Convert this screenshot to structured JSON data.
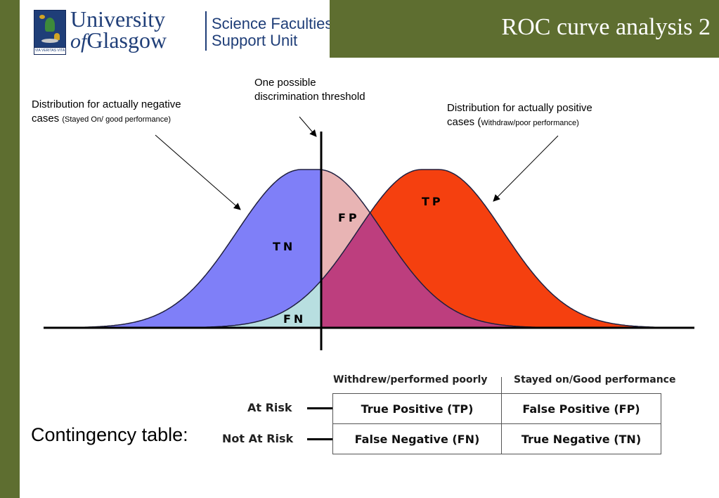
{
  "header": {
    "title": "ROC curve analysis 2",
    "logo": {
      "university_line1": "University",
      "university_of": "of",
      "university_line2": "Glasgow",
      "unit_line1": "Science Faculties",
      "unit_line2": "Support Unit",
      "motto": "VIA VERITAS VITA"
    }
  },
  "diagram": {
    "threshold_label_line1": "One possible",
    "threshold_label_line2": "discrimination threshold",
    "negative_label_line1": "Distribution for actually negative",
    "negative_label_line2_main": "cases",
    "negative_label_line2_small": "(Stayed On/ good performance)",
    "positive_label_line1": "Distribution for actually positive",
    "positive_label_line2_main": "cases (",
    "positive_label_line2_small": "Withdraw/poor performance)",
    "regions": {
      "tn": "TN",
      "fp": "FP",
      "tp": "TP",
      "fn": "FN"
    },
    "colors": {
      "negative": "#7f7ff8",
      "positive": "#f5400f",
      "false_positive": "#e8b4b4",
      "false_negative": "#b8dfe0",
      "overlap": "#bd3e7e",
      "frame": "#5e6e30"
    }
  },
  "contingency": {
    "caption": "Contingency table:",
    "columns": [
      "Withdrew/performed poorly",
      "Stayed on/Good performance"
    ],
    "rows": [
      {
        "label": "At Risk",
        "cells": [
          "True Positive (TP)",
          "False Positive (FP)"
        ]
      },
      {
        "label": "Not At Risk",
        "cells": [
          "False Negative (FN)",
          "True Negative (TN)"
        ]
      }
    ]
  }
}
